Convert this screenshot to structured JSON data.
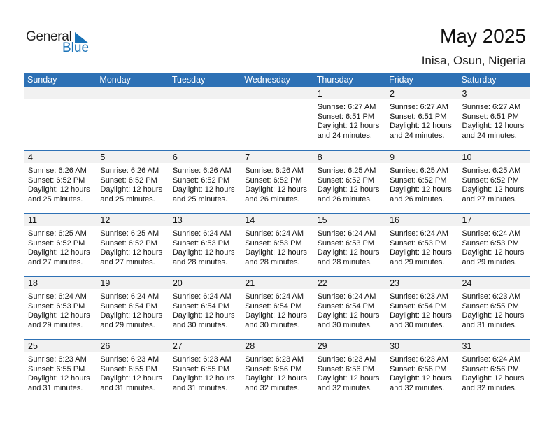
{
  "logo": {
    "general": "General",
    "blue": "Blue",
    "accent": "#1a73b8"
  },
  "header": {
    "title": "May 2025",
    "location": "Inisa, Osun, Nigeria"
  },
  "colors": {
    "header_bg": "#2e71b5",
    "day_band": "#f1f1f1"
  },
  "weekdays": [
    "Sunday",
    "Monday",
    "Tuesday",
    "Wednesday",
    "Thursday",
    "Friday",
    "Saturday"
  ],
  "weeks": [
    [
      null,
      null,
      null,
      null,
      {
        "day": "1",
        "sunrise": "Sunrise: 6:27 AM",
        "sunset": "Sunset: 6:51 PM",
        "daylight1": "Daylight: 12 hours",
        "daylight2": "and 24 minutes."
      },
      {
        "day": "2",
        "sunrise": "Sunrise: 6:27 AM",
        "sunset": "Sunset: 6:51 PM",
        "daylight1": "Daylight: 12 hours",
        "daylight2": "and 24 minutes."
      },
      {
        "day": "3",
        "sunrise": "Sunrise: 6:27 AM",
        "sunset": "Sunset: 6:51 PM",
        "daylight1": "Daylight: 12 hours",
        "daylight2": "and 24 minutes."
      }
    ],
    [
      {
        "day": "4",
        "sunrise": "Sunrise: 6:26 AM",
        "sunset": "Sunset: 6:52 PM",
        "daylight1": "Daylight: 12 hours",
        "daylight2": "and 25 minutes."
      },
      {
        "day": "5",
        "sunrise": "Sunrise: 6:26 AM",
        "sunset": "Sunset: 6:52 PM",
        "daylight1": "Daylight: 12 hours",
        "daylight2": "and 25 minutes."
      },
      {
        "day": "6",
        "sunrise": "Sunrise: 6:26 AM",
        "sunset": "Sunset: 6:52 PM",
        "daylight1": "Daylight: 12 hours",
        "daylight2": "and 25 minutes."
      },
      {
        "day": "7",
        "sunrise": "Sunrise: 6:26 AM",
        "sunset": "Sunset: 6:52 PM",
        "daylight1": "Daylight: 12 hours",
        "daylight2": "and 26 minutes."
      },
      {
        "day": "8",
        "sunrise": "Sunrise: 6:25 AM",
        "sunset": "Sunset: 6:52 PM",
        "daylight1": "Daylight: 12 hours",
        "daylight2": "and 26 minutes."
      },
      {
        "day": "9",
        "sunrise": "Sunrise: 6:25 AM",
        "sunset": "Sunset: 6:52 PM",
        "daylight1": "Daylight: 12 hours",
        "daylight2": "and 26 minutes."
      },
      {
        "day": "10",
        "sunrise": "Sunrise: 6:25 AM",
        "sunset": "Sunset: 6:52 PM",
        "daylight1": "Daylight: 12 hours",
        "daylight2": "and 27 minutes."
      }
    ],
    [
      {
        "day": "11",
        "sunrise": "Sunrise: 6:25 AM",
        "sunset": "Sunset: 6:52 PM",
        "daylight1": "Daylight: 12 hours",
        "daylight2": "and 27 minutes."
      },
      {
        "day": "12",
        "sunrise": "Sunrise: 6:25 AM",
        "sunset": "Sunset: 6:52 PM",
        "daylight1": "Daylight: 12 hours",
        "daylight2": "and 27 minutes."
      },
      {
        "day": "13",
        "sunrise": "Sunrise: 6:24 AM",
        "sunset": "Sunset: 6:53 PM",
        "daylight1": "Daylight: 12 hours",
        "daylight2": "and 28 minutes."
      },
      {
        "day": "14",
        "sunrise": "Sunrise: 6:24 AM",
        "sunset": "Sunset: 6:53 PM",
        "daylight1": "Daylight: 12 hours",
        "daylight2": "and 28 minutes."
      },
      {
        "day": "15",
        "sunrise": "Sunrise: 6:24 AM",
        "sunset": "Sunset: 6:53 PM",
        "daylight1": "Daylight: 12 hours",
        "daylight2": "and 28 minutes."
      },
      {
        "day": "16",
        "sunrise": "Sunrise: 6:24 AM",
        "sunset": "Sunset: 6:53 PM",
        "daylight1": "Daylight: 12 hours",
        "daylight2": "and 29 minutes."
      },
      {
        "day": "17",
        "sunrise": "Sunrise: 6:24 AM",
        "sunset": "Sunset: 6:53 PM",
        "daylight1": "Daylight: 12 hours",
        "daylight2": "and 29 minutes."
      }
    ],
    [
      {
        "day": "18",
        "sunrise": "Sunrise: 6:24 AM",
        "sunset": "Sunset: 6:53 PM",
        "daylight1": "Daylight: 12 hours",
        "daylight2": "and 29 minutes."
      },
      {
        "day": "19",
        "sunrise": "Sunrise: 6:24 AM",
        "sunset": "Sunset: 6:54 PM",
        "daylight1": "Daylight: 12 hours",
        "daylight2": "and 29 minutes."
      },
      {
        "day": "20",
        "sunrise": "Sunrise: 6:24 AM",
        "sunset": "Sunset: 6:54 PM",
        "daylight1": "Daylight: 12 hours",
        "daylight2": "and 30 minutes."
      },
      {
        "day": "21",
        "sunrise": "Sunrise: 6:24 AM",
        "sunset": "Sunset: 6:54 PM",
        "daylight1": "Daylight: 12 hours",
        "daylight2": "and 30 minutes."
      },
      {
        "day": "22",
        "sunrise": "Sunrise: 6:24 AM",
        "sunset": "Sunset: 6:54 PM",
        "daylight1": "Daylight: 12 hours",
        "daylight2": "and 30 minutes."
      },
      {
        "day": "23",
        "sunrise": "Sunrise: 6:23 AM",
        "sunset": "Sunset: 6:54 PM",
        "daylight1": "Daylight: 12 hours",
        "daylight2": "and 30 minutes."
      },
      {
        "day": "24",
        "sunrise": "Sunrise: 6:23 AM",
        "sunset": "Sunset: 6:55 PM",
        "daylight1": "Daylight: 12 hours",
        "daylight2": "and 31 minutes."
      }
    ],
    [
      {
        "day": "25",
        "sunrise": "Sunrise: 6:23 AM",
        "sunset": "Sunset: 6:55 PM",
        "daylight1": "Daylight: 12 hours",
        "daylight2": "and 31 minutes."
      },
      {
        "day": "26",
        "sunrise": "Sunrise: 6:23 AM",
        "sunset": "Sunset: 6:55 PM",
        "daylight1": "Daylight: 12 hours",
        "daylight2": "and 31 minutes."
      },
      {
        "day": "27",
        "sunrise": "Sunrise: 6:23 AM",
        "sunset": "Sunset: 6:55 PM",
        "daylight1": "Daylight: 12 hours",
        "daylight2": "and 31 minutes."
      },
      {
        "day": "28",
        "sunrise": "Sunrise: 6:23 AM",
        "sunset": "Sunset: 6:56 PM",
        "daylight1": "Daylight: 12 hours",
        "daylight2": "and 32 minutes."
      },
      {
        "day": "29",
        "sunrise": "Sunrise: 6:23 AM",
        "sunset": "Sunset: 6:56 PM",
        "daylight1": "Daylight: 12 hours",
        "daylight2": "and 32 minutes."
      },
      {
        "day": "30",
        "sunrise": "Sunrise: 6:23 AM",
        "sunset": "Sunset: 6:56 PM",
        "daylight1": "Daylight: 12 hours",
        "daylight2": "and 32 minutes."
      },
      {
        "day": "31",
        "sunrise": "Sunrise: 6:24 AM",
        "sunset": "Sunset: 6:56 PM",
        "daylight1": "Daylight: 12 hours",
        "daylight2": "and 32 minutes."
      }
    ]
  ]
}
